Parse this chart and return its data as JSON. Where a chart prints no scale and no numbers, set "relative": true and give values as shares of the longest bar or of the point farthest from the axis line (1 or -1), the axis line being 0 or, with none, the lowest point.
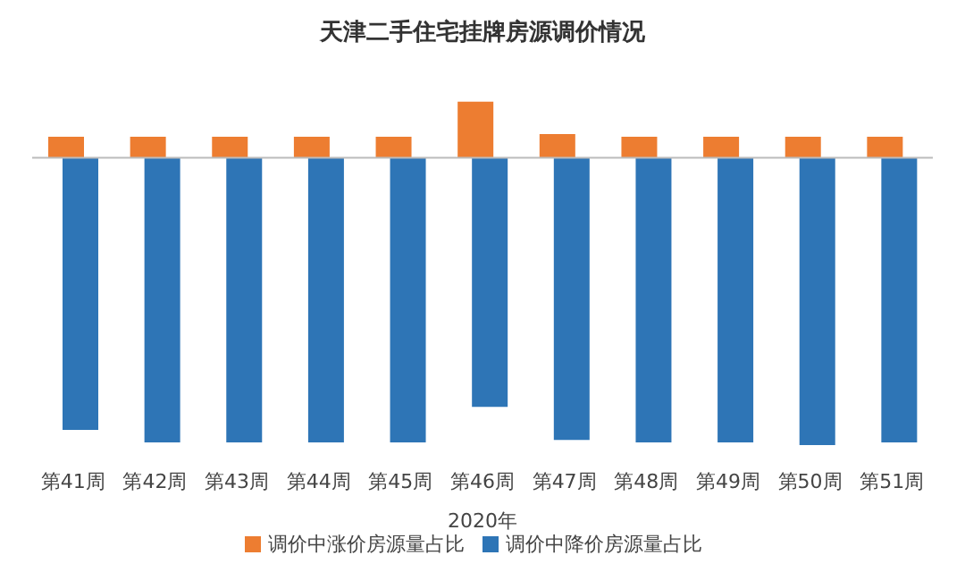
{
  "chart_data": {
    "type": "bar",
    "title": "天津二手住宅挂牌房源调价情况",
    "xlabel": "2020年",
    "relative": true,
    "categories": [
      "第41周",
      "第42周",
      "第43周",
      "第44周",
      "第45周",
      "第46周",
      "第47周",
      "第48周",
      "第49周",
      "第50周",
      "第51周"
    ],
    "series": [
      {
        "name": "调价中涨价房源量占比",
        "color": "#ed7d31",
        "values": [
          0.073,
          0.073,
          0.073,
          0.073,
          0.073,
          0.195,
          0.082,
          0.073,
          0.073,
          0.073,
          0.073
        ]
      },
      {
        "name": "调价中降价房源量占比",
        "color": "#2e75b6",
        "values": [
          -0.947,
          -0.991,
          -0.991,
          -0.991,
          -0.991,
          -0.867,
          -0.982,
          -0.991,
          -0.991,
          -1,
          -0.991
        ]
      }
    ],
    "grid": false,
    "legend": "bottom"
  }
}
